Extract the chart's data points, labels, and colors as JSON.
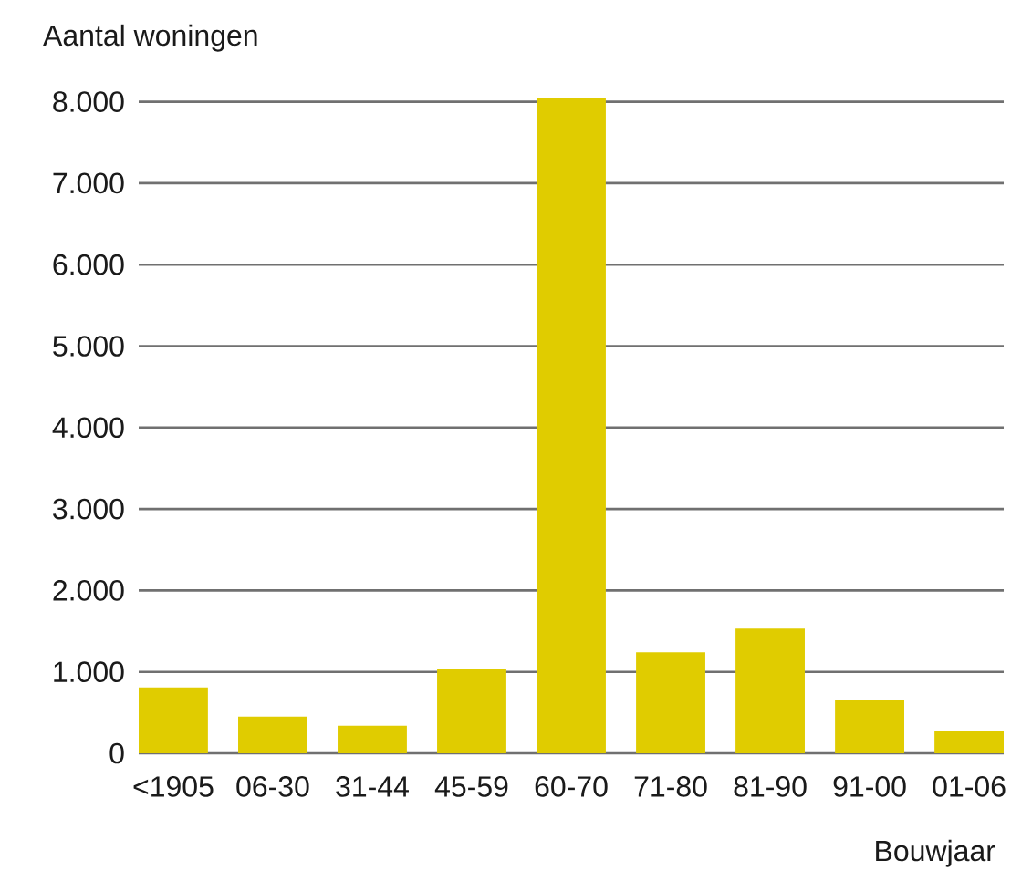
{
  "chart_data": {
    "type": "bar",
    "ylabel": "Aantal woningen",
    "xlabel": "Bouwjaar",
    "categories": [
      "<1905",
      "06-30",
      "31-44",
      "45-59",
      "60-70",
      "71-80",
      "81-90",
      "91-00",
      "01-06"
    ],
    "values": [
      810,
      450,
      340,
      1040,
      8040,
      1240,
      1530,
      650,
      270
    ],
    "color": "#e0cc00",
    "ylim": [
      0,
      8040
    ],
    "yticks": [
      0,
      {
        "value": 1000,
        "label": "1.000"
      },
      {
        "value": 2000,
        "label": "2.000"
      },
      {
        "value": 3000,
        "label": "3.000"
      },
      {
        "value": 4000,
        "label": "4.000"
      },
      {
        "value": 5000,
        "label": "5.000"
      },
      {
        "value": 6000,
        "label": "6.000"
      },
      {
        "value": 7000,
        "label": "7.000"
      },
      {
        "value": 8000,
        "label": "8.000"
      }
    ],
    "grid": "y"
  }
}
